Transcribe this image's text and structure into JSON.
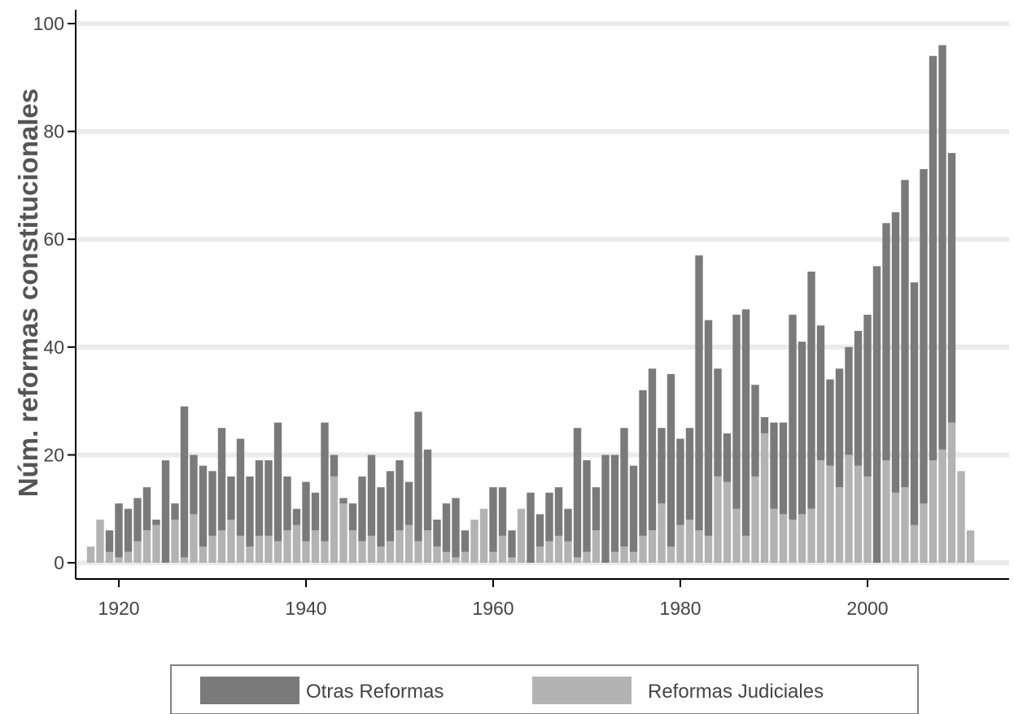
{
  "chart_data": {
    "type": "bar",
    "stacked": true,
    "title": "",
    "xlabel": "",
    "ylabel": "Núm. reformas constitucionales",
    "xlim": [
      1915,
      2013
    ],
    "ylim": [
      0,
      102
    ],
    "xticks": [
      1920,
      1940,
      1960,
      1980,
      2000
    ],
    "yticks": [
      0,
      20,
      40,
      60,
      80,
      100
    ],
    "grid": "horizontal",
    "legend_position": "bottom",
    "colors": {
      "Reformas Judiciales": "#b3b3b3",
      "Otras Reformas": "#7a7a7a",
      "grid": "#ebebeb",
      "axis": "#000000"
    },
    "x": [
      1917,
      1918,
      1919,
      1920,
      1921,
      1922,
      1923,
      1924,
      1925,
      1926,
      1927,
      1928,
      1929,
      1930,
      1931,
      1932,
      1933,
      1934,
      1935,
      1936,
      1937,
      1938,
      1939,
      1940,
      1941,
      1942,
      1943,
      1944,
      1945,
      1946,
      1947,
      1948,
      1949,
      1950,
      1951,
      1952,
      1953,
      1954,
      1955,
      1956,
      1957,
      1958,
      1959,
      1960,
      1961,
      1962,
      1963,
      1964,
      1965,
      1966,
      1967,
      1968,
      1969,
      1970,
      1971,
      1972,
      1973,
      1974,
      1975,
      1976,
      1977,
      1978,
      1979,
      1980,
      1981,
      1982,
      1983,
      1984,
      1985,
      1986,
      1987,
      1988,
      1989,
      1990,
      1991,
      1992,
      1993,
      1994,
      1995,
      1996,
      1997,
      1998,
      1999,
      2000,
      2001,
      2002,
      2003,
      2004,
      2005,
      2006,
      2007,
      2008,
      2009,
      2010,
      2011
    ],
    "series": [
      {
        "name": "Reformas Judiciales",
        "values": [
          3,
          8,
          2,
          1,
          2,
          4,
          6,
          7,
          0,
          8,
          1,
          9,
          3,
          5,
          6,
          8,
          5,
          3,
          5,
          5,
          4,
          6,
          7,
          4,
          6,
          4,
          16,
          11,
          6,
          4,
          5,
          3,
          4,
          6,
          7,
          4,
          6,
          3,
          2,
          1,
          2,
          8,
          10,
          2,
          5,
          1,
          10,
          0,
          3,
          4,
          5,
          4,
          1,
          2,
          6,
          0,
          2,
          3,
          2,
          5,
          6,
          11,
          3,
          7,
          8,
          6,
          5,
          16,
          15,
          10,
          5,
          16,
          24,
          10,
          9,
          8,
          9,
          10,
          19,
          18,
          14,
          20,
          18,
          16,
          0,
          19,
          13,
          14,
          7,
          11,
          19,
          21,
          26,
          17,
          6
        ]
      },
      {
        "name": "Otras Reformas",
        "values": [
          0,
          0,
          4,
          10,
          8,
          8,
          8,
          1,
          19,
          3,
          28,
          11,
          15,
          12,
          19,
          8,
          18,
          13,
          14,
          14,
          22,
          10,
          3,
          11,
          7,
          22,
          4,
          1,
          5,
          12,
          15,
          11,
          13,
          13,
          8,
          24,
          15,
          5,
          9,
          11,
          4,
          0,
          0,
          12,
          9,
          5,
          0,
          13,
          6,
          9,
          9,
          6,
          24,
          17,
          8,
          20,
          18,
          22,
          16,
          27,
          30,
          14,
          32,
          16,
          17,
          51,
          40,
          20,
          9,
          36,
          42,
          17,
          3,
          16,
          17,
          38,
          32,
          44,
          25,
          16,
          22,
          20,
          25,
          30,
          55,
          44,
          52,
          57,
          45,
          62,
          75,
          75,
          50,
          0,
          0
        ]
      }
    ]
  },
  "legend": {
    "items": [
      {
        "label": "Otras Reformas",
        "color": "#7a7a7a"
      },
      {
        "label": "Reformas Judiciales",
        "color": "#b3b3b3"
      }
    ]
  }
}
